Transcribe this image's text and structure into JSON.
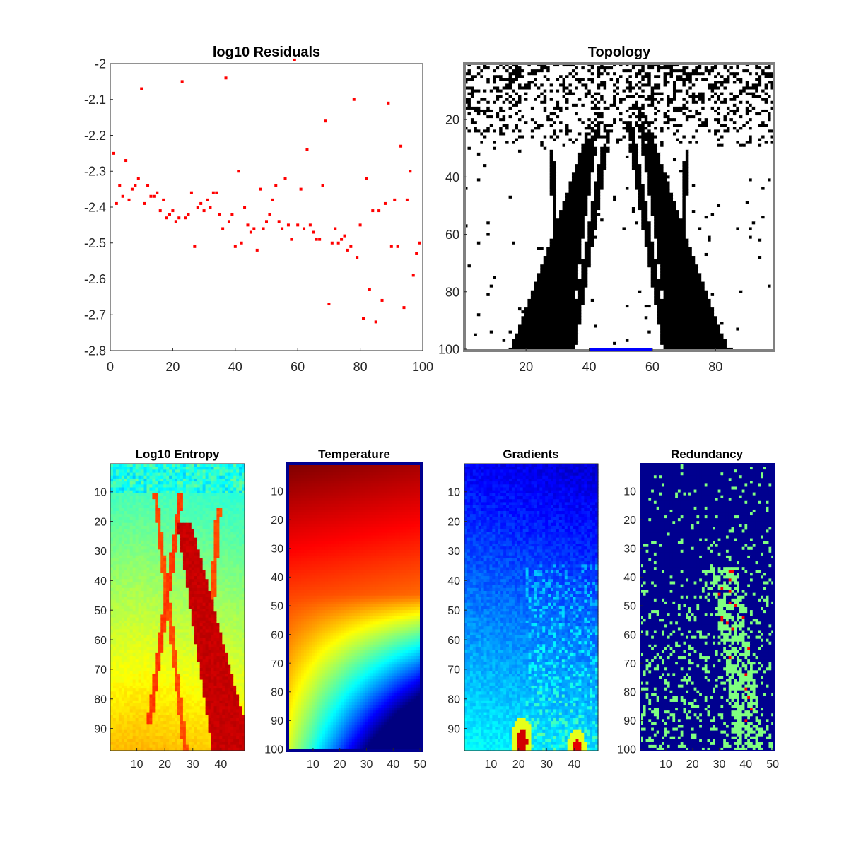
{
  "figure": {
    "background": "#ffffff",
    "panels": [
      {
        "id": "residuals",
        "title": "log10 Residuals",
        "type": "scatter",
        "xticks": [
          "0",
          "20",
          "40",
          "60",
          "80",
          "100"
        ],
        "yticks": [
          "-2",
          "-2.1",
          "-2.2",
          "-2.3",
          "-2.4",
          "-2.5",
          "-2.6",
          "-2.7",
          "-2.8"
        ]
      },
      {
        "id": "topology",
        "title": "Topology",
        "type": "heatmap",
        "xticks": [
          "20",
          "40",
          "60",
          "80"
        ],
        "yticks": [
          "20",
          "40",
          "60",
          "80",
          "100"
        ]
      },
      {
        "id": "entropy",
        "title": "Log10 Entropy",
        "type": "heatmap",
        "xticks": [
          "10",
          "20",
          "30",
          "40"
        ],
        "yticks": [
          "10",
          "20",
          "30",
          "40",
          "50",
          "60",
          "70",
          "80",
          "90"
        ]
      },
      {
        "id": "temperature",
        "title": "Temperature",
        "type": "heatmap",
        "xticks": [
          "10",
          "20",
          "30",
          "40",
          "50"
        ],
        "yticks": [
          "10",
          "20",
          "30",
          "40",
          "50",
          "60",
          "70",
          "80",
          "90",
          "100"
        ]
      },
      {
        "id": "gradients",
        "title": "Gradients",
        "type": "heatmap",
        "xticks": [
          "10",
          "20",
          "30",
          "40"
        ],
        "yticks": [
          "10",
          "20",
          "30",
          "40",
          "50",
          "60",
          "70",
          "80",
          "90"
        ]
      },
      {
        "id": "redundancy",
        "title": "Redundancy",
        "type": "heatmap",
        "xticks": [
          "10",
          "20",
          "30",
          "40",
          "50"
        ],
        "yticks": [
          "10",
          "20",
          "30",
          "40",
          "50",
          "60",
          "70",
          "80",
          "90",
          "100"
        ]
      }
    ]
  },
  "chart_data": [
    {
      "type": "scatter",
      "title": "log10 Residuals",
      "xlim": [
        0,
        100
      ],
      "ylim": [
        -2.8,
        -2
      ],
      "marker_color": "#ff0000",
      "x": [
        1,
        2,
        3,
        4,
        5,
        6,
        7,
        8,
        9,
        10,
        11,
        12,
        13,
        14,
        15,
        16,
        17,
        18,
        19,
        20,
        21,
        22,
        23,
        24,
        25,
        26,
        27,
        28,
        29,
        30,
        31,
        32,
        33,
        34,
        35,
        36,
        37,
        38,
        39,
        40,
        41,
        42,
        43,
        44,
        45,
        46,
        47,
        48,
        49,
        50,
        51,
        52,
        53,
        54,
        55,
        56,
        57,
        58,
        59,
        60,
        61,
        62,
        63,
        64,
        65,
        66,
        67,
        68,
        69,
        70,
        71,
        72,
        73,
        74,
        75,
        76,
        77,
        78,
        79,
        80,
        81,
        82,
        83,
        84,
        85,
        86,
        87,
        88,
        89,
        90,
        91,
        92,
        93,
        94,
        95,
        96,
        97,
        98,
        99
      ],
      "y": [
        -2.25,
        -2.39,
        -2.34,
        -2.37,
        -2.27,
        -2.38,
        -2.35,
        -2.34,
        -2.32,
        -2.07,
        -2.39,
        -2.34,
        -2.37,
        -2.37,
        -2.36,
        -2.41,
        -2.38,
        -2.43,
        -2.42,
        -2.41,
        -2.44,
        -2.43,
        -2.05,
        -2.43,
        -2.42,
        -2.36,
        -2.51,
        -2.4,
        -2.39,
        -2.41,
        -2.38,
        -2.4,
        -2.36,
        -2.36,
        -2.42,
        -2.46,
        -2.04,
        -2.44,
        -2.42,
        -2.51,
        -2.3,
        -2.5,
        -2.4,
        -2.45,
        -2.47,
        -2.46,
        -2.52,
        -2.35,
        -2.46,
        -2.44,
        -2.42,
        -2.38,
        -2.34,
        -2.44,
        -2.46,
        -2.32,
        -2.45,
        -2.49,
        -1.99,
        -2.45,
        -2.35,
        -2.46,
        -2.24,
        -2.45,
        -2.47,
        -2.49,
        -2.49,
        -2.34,
        -2.16,
        -2.67,
        -2.5,
        -2.46,
        -2.5,
        -2.49,
        -2.48,
        -2.52,
        -2.51,
        -2.1,
        -2.54,
        -2.45,
        -2.71,
        -2.32,
        -2.63,
        -2.41,
        -2.72,
        -2.41,
        -2.66,
        -2.39,
        -2.11,
        -2.51,
        -2.38,
        -2.51,
        -2.23,
        -2.68,
        -2.38,
        -2.3,
        -2.59,
        -2.53,
        -2.5
      ]
    },
    {
      "type": "heatmap",
      "title": "Topology",
      "xlim": [
        0.5,
        98.5
      ],
      "ylim": [
        0.5,
        100.5
      ],
      "colormap": "gray-binary",
      "colors": {
        "solid": "#000000",
        "void": "#ffffff",
        "frame": "#808080",
        "boundary": "#0000ff"
      },
      "boundary_x": [
        40,
        60
      ]
    },
    {
      "type": "heatmap",
      "title": "Log10 Entropy",
      "xlim": [
        0.5,
        48.5
      ],
      "ylim": [
        0.5,
        97.5
      ],
      "colormap": "jet"
    },
    {
      "type": "heatmap",
      "title": "Temperature",
      "xlim": [
        0.5,
        50.5
      ],
      "ylim": [
        0.5,
        100.5
      ],
      "colormap": "jet"
    },
    {
      "type": "heatmap",
      "title": "Gradients",
      "xlim": [
        0.5,
        48.5
      ],
      "ylim": [
        0.5,
        97.5
      ],
      "colormap": "jet"
    },
    {
      "type": "heatmap",
      "title": "Redundancy",
      "xlim": [
        0.5,
        50.5
      ],
      "ylim": [
        0.5,
        100.5
      ],
      "colormap": "jet-discrete",
      "colors": {
        "low": "#00008f",
        "mid": "#80ff80",
        "high": "#ff0000"
      }
    }
  ]
}
